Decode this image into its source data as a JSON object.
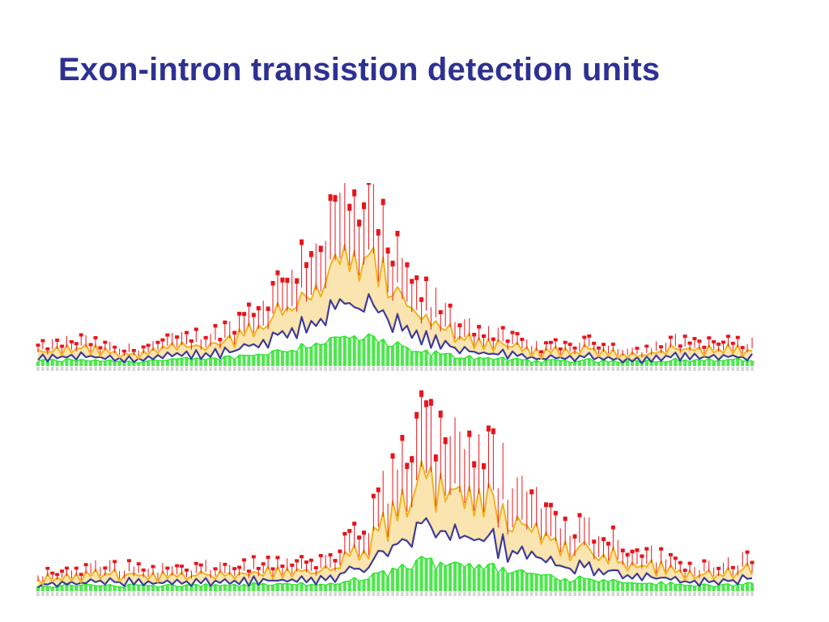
{
  "slide": {
    "title": "Exon-intron transistion detection units"
  },
  "colors": {
    "title": "#2e3192",
    "layer_red": "#e8141b",
    "layer_yellow": "#f2b21d",
    "layer_blue": "#1b24b4",
    "layer_green": "#2ee42e",
    "axis_labels": "#888888"
  },
  "figures": [
    {
      "id": "logo-top",
      "kind": "sequence-logo-profile",
      "layers": [
        "red",
        "yellow",
        "blue",
        "green"
      ]
    },
    {
      "id": "logo-bottom",
      "kind": "sequence-logo-profile",
      "layers": [
        "red",
        "yellow",
        "blue",
        "green"
      ]
    }
  ]
}
